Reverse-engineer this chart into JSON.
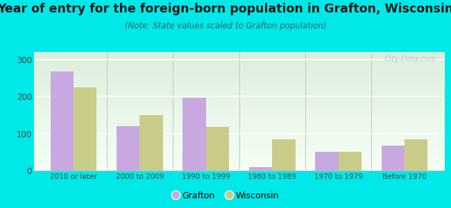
{
  "categories": [
    "2010 or later",
    "2000 to 2009",
    "1990 to 1999",
    "1980 to 1989",
    "1970 to 1979",
    "Before 1970"
  ],
  "grafton_values": [
    268,
    120,
    196,
    10,
    50,
    68
  ],
  "wisconsin_values": [
    224,
    149,
    118,
    84,
    50,
    84
  ],
  "grafton_color": "#c8a8e0",
  "wisconsin_color": "#c8cc88",
  "title": "Year of entry for the foreign-born population in Grafton, Wisconsin",
  "subtitle": "(Note: State values scaled to Grafton population)",
  "title_fontsize": 12.5,
  "subtitle_fontsize": 8.5,
  "legend_grafton": "Grafton",
  "legend_wisconsin": "Wisconsin",
  "ylim": [
    0,
    320
  ],
  "yticks": [
    0,
    100,
    200,
    300
  ],
  "bg_color": "#00e8e8",
  "plot_bg_top": "#e8f5e8",
  "plot_bg_bottom": "#f8fff8",
  "bar_width": 0.35,
  "watermark": "City-Data.com"
}
